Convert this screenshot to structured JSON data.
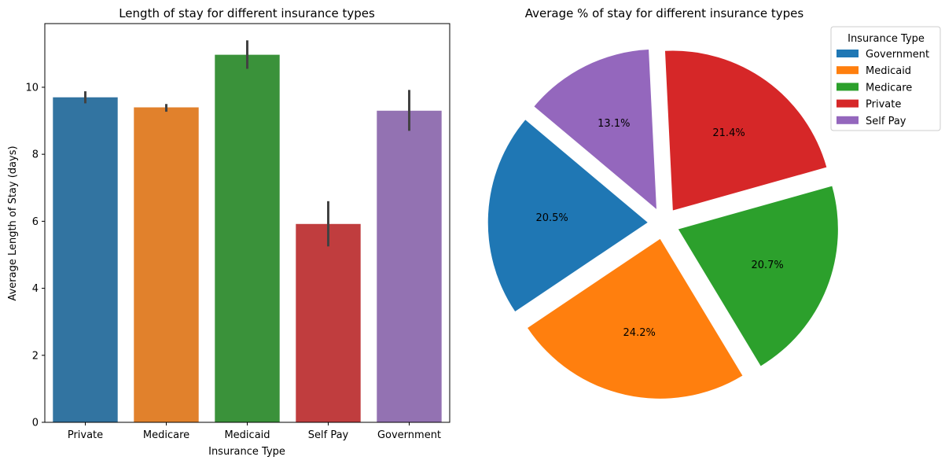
{
  "chart_data": [
    {
      "type": "bar",
      "title": "Length of stay for different insurance types",
      "xlabel": "Insurance Type",
      "ylabel": "Average Length of Stay (days)",
      "categories": [
        "Private",
        "Medicare",
        "Medicaid",
        "Self Pay",
        "Government"
      ],
      "values": [
        9.7,
        9.4,
        10.97,
        5.92,
        9.3
      ],
      "error_bars": [
        [
          9.52,
          9.88
        ],
        [
          9.27,
          9.5
        ],
        [
          10.55,
          11.4
        ],
        [
          5.25,
          6.6
        ],
        [
          8.7,
          9.92
        ]
      ],
      "colors": [
        "#3274a1",
        "#e1812c",
        "#3a923a",
        "#c03d3e",
        "#9372b2"
      ],
      "ylim": [
        0,
        11.9
      ],
      "yticks": [
        0,
        2,
        4,
        6,
        8,
        10
      ],
      "grid": false
    },
    {
      "type": "pie",
      "title": "Average % of stay for different insurance types",
      "labels": [
        "Government",
        "Medicaid",
        "Medicare",
        "Private",
        "Self Pay"
      ],
      "values": [
        20.5,
        24.2,
        20.7,
        21.4,
        13.1
      ],
      "display_labels": [
        "20.5%",
        "24.2%",
        "20.7%",
        "21.4%",
        "13.1%"
      ],
      "colors": [
        "#1f77b4",
        "#ff7f0e",
        "#2ca02c",
        "#d62728",
        "#9467bd"
      ],
      "start_angle_deg": 140,
      "exploded": true,
      "legend": {
        "title": "Insurance Type",
        "placement": "top-right"
      }
    }
  ]
}
